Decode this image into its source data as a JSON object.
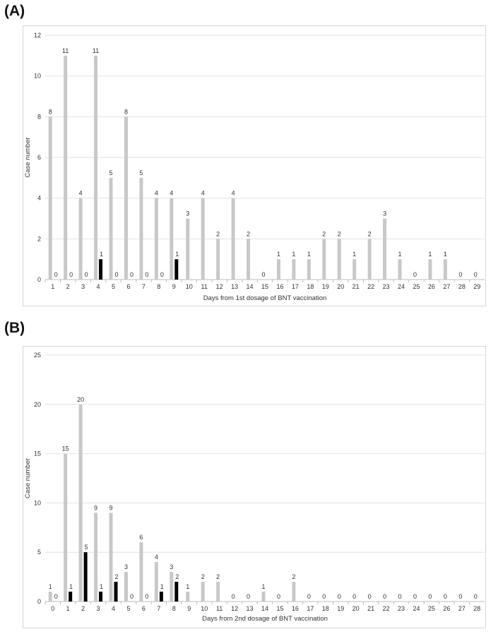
{
  "panels": [
    {
      "label": "(A)",
      "chart_data": {
        "type": "bar",
        "categories": [
          "1",
          "2",
          "3",
          "4",
          "5",
          "6",
          "7",
          "8",
          "9",
          "10",
          "11",
          "12",
          "13",
          "14",
          "15",
          "16",
          "17",
          "18",
          "19",
          "20",
          "21",
          "22",
          "23",
          "24",
          "25",
          "26",
          "27",
          "28",
          "29"
        ],
        "series": [
          {
            "color": "#c8c8c8",
            "values": [
              8,
              11,
              4,
              11,
              5,
              8,
              5,
              4,
              4,
              3,
              4,
              2,
              4,
              2,
              0,
              1,
              1,
              1,
              2,
              2,
              1,
              2,
              3,
              1,
              0,
              1,
              1,
              0,
              0
            ]
          },
          {
            "color": "#000000",
            "values": [
              0,
              0,
              0,
              1,
              0,
              0,
              0,
              0,
              1,
              null,
              null,
              null,
              null,
              null,
              null,
              null,
              null,
              null,
              null,
              null,
              null,
              null,
              null,
              null,
              null,
              null,
              null,
              null,
              null
            ]
          }
        ],
        "xlabel": "Days from 1st dosage of BNT vaccination",
        "ylabel": "Case number",
        "ylim": [
          0,
          12
        ],
        "yticks": [
          0,
          2,
          4,
          6,
          8,
          10,
          12
        ],
        "grid": true
      }
    },
    {
      "label": "(B)",
      "chart_data": {
        "type": "bar",
        "categories": [
          "0",
          "1",
          "2",
          "3",
          "4",
          "5",
          "6",
          "7",
          "8",
          "9",
          "10",
          "11",
          "12",
          "13",
          "14",
          "15",
          "16",
          "17",
          "18",
          "19",
          "20",
          "21",
          "22",
          "23",
          "24",
          "25",
          "26",
          "27",
          "28"
        ],
        "series": [
          {
            "color": "#c8c8c8",
            "values": [
              1,
              15,
              20,
              9,
              9,
              3,
              6,
              4,
              3,
              1,
              2,
              2,
              0,
              0,
              1,
              0,
              2,
              0,
              0,
              0,
              0,
              0,
              0,
              0,
              0,
              0,
              0,
              0,
              0
            ]
          },
          {
            "color": "#000000",
            "values": [
              0,
              1,
              5,
              1,
              2,
              0,
              0,
              1,
              2,
              null,
              null,
              null,
              null,
              null,
              null,
              null,
              null,
              null,
              null,
              null,
              null,
              null,
              null,
              null,
              null,
              null,
              null,
              null,
              null
            ]
          }
        ],
        "xlabel": "Days from 2nd dosage of BNT vaccination",
        "ylabel": "Case number",
        "ylim": [
          0,
          25
        ],
        "yticks": [
          0,
          5,
          10,
          15,
          20,
          25
        ],
        "grid": true
      }
    }
  ]
}
